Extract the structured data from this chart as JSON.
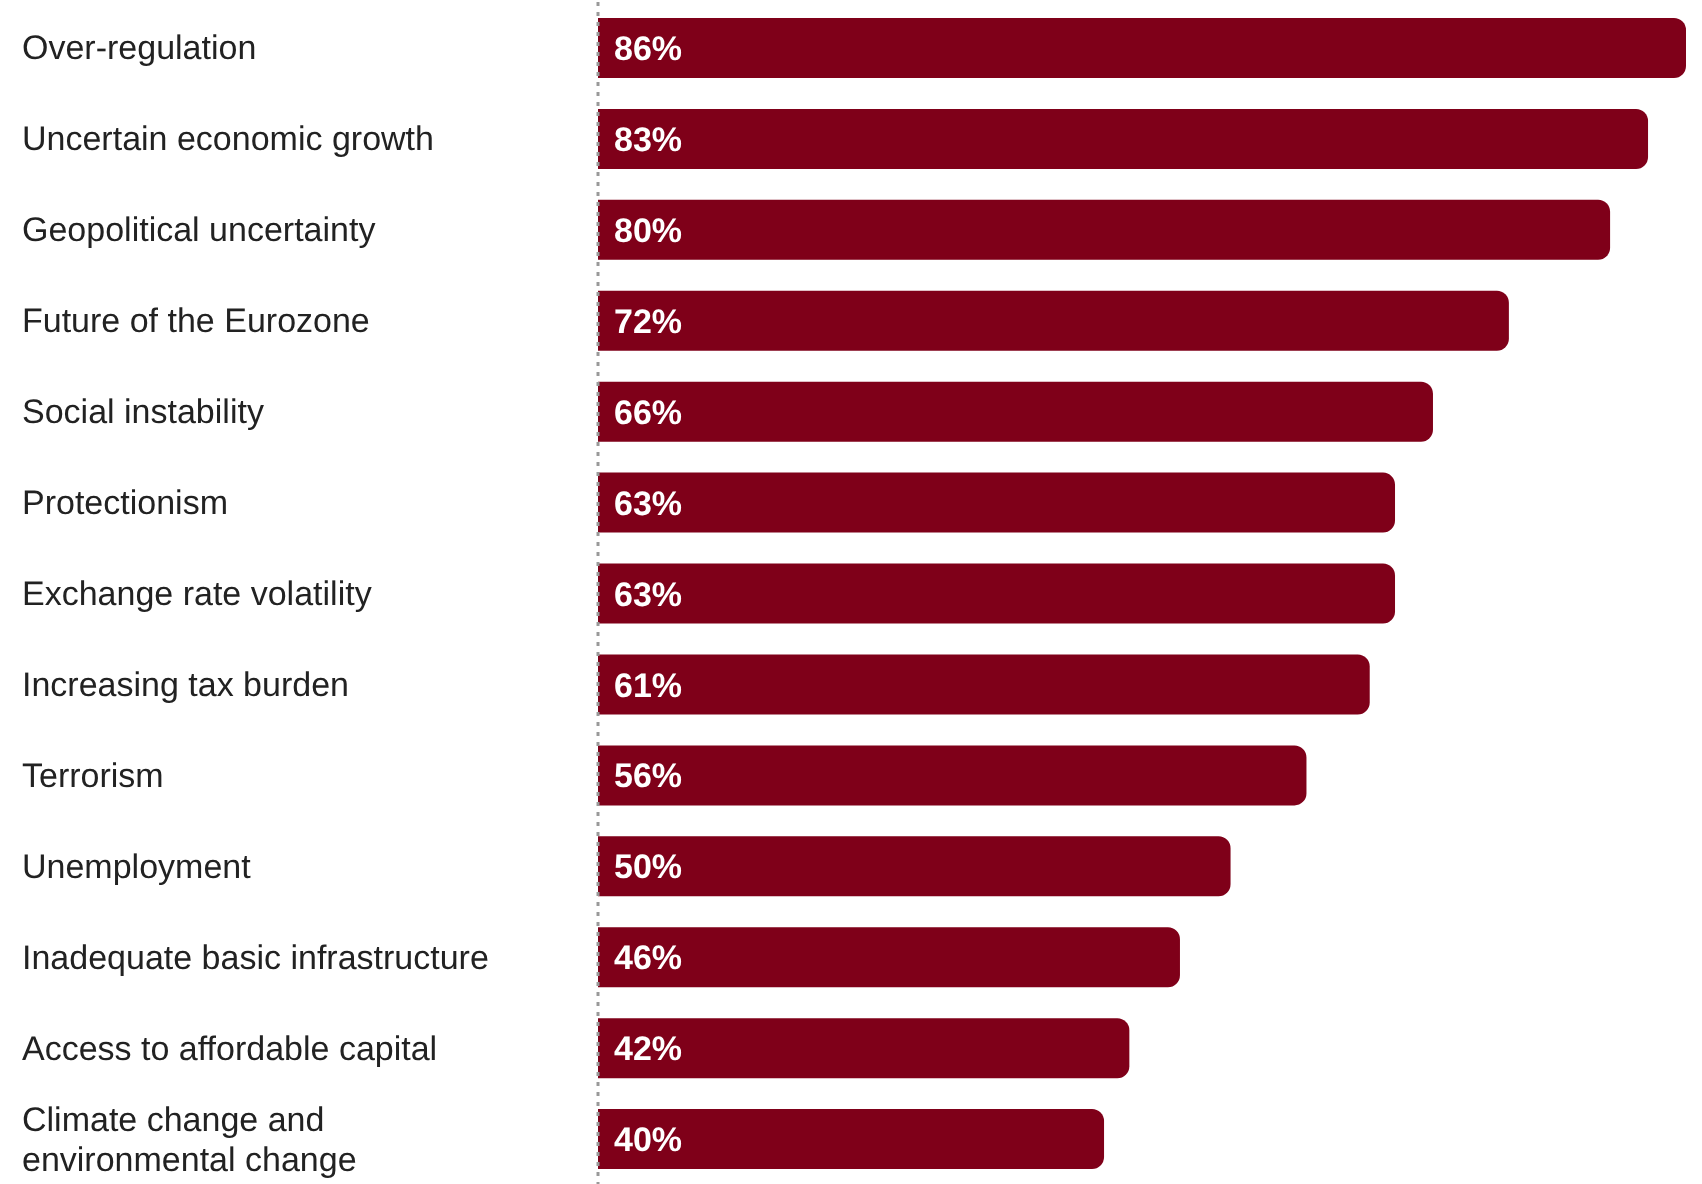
{
  "chart_data": {
    "type": "bar",
    "orientation": "horizontal",
    "categories": [
      "Over-regulation",
      "Uncertain economic growth",
      "Geopolitical uncertainty",
      "Future of the Eurozone",
      "Social instability",
      "Protectionism",
      "Exchange rate volatility",
      "Increasing tax burden",
      "Terrorism",
      "Unemployment",
      "Inadequate basic infrastructure",
      "Access to affordable capital",
      "Climate change and environmental change"
    ],
    "values": [
      86,
      83,
      80,
      72,
      66,
      63,
      63,
      61,
      56,
      50,
      46,
      42,
      40
    ],
    "value_labels": [
      "86%",
      "83%",
      "80%",
      "72%",
      "66%",
      "63%",
      "63%",
      "61%",
      "56%",
      "50%",
      "46%",
      "42%",
      "40%"
    ],
    "color": "#7f0019",
    "tick_labels": "y"
  }
}
